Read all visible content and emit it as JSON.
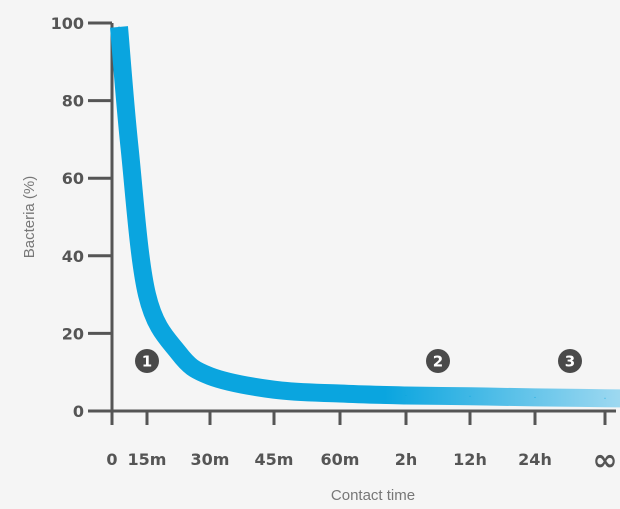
{
  "chart_data": {
    "type": "line",
    "title": "",
    "xlabel": "Contact time",
    "ylabel": "Bacteria (%)",
    "ylim": [
      0,
      100
    ],
    "yticks": [
      "0",
      "20",
      "40",
      "60",
      "80",
      "100"
    ],
    "categories": [
      "0",
      "15m",
      "30m",
      "45m",
      "60m",
      "2h",
      "12h",
      "24h",
      "∞"
    ],
    "x": [
      0.2,
      0.5,
      1,
      1.5,
      2,
      3,
      4,
      5,
      6,
      7,
      8,
      9,
      9.5
    ],
    "values": [
      99,
      68,
      30,
      15,
      9,
      5.5,
      4.5,
      4,
      3.8,
      3.5,
      3.3,
      3.1,
      3
    ],
    "markers": [
      {
        "label": "1",
        "x": 1
      },
      {
        "label": "2",
        "x": 5.5
      },
      {
        "label": "3",
        "x": 7.5
      }
    ],
    "grid": false,
    "legend": "none",
    "colors": {
      "curve": "#0aa5df",
      "curve_fade": "#d6ecf7",
      "axis": "#555555",
      "marker": "#4a4a4a",
      "background": "#f5f5f5"
    }
  }
}
